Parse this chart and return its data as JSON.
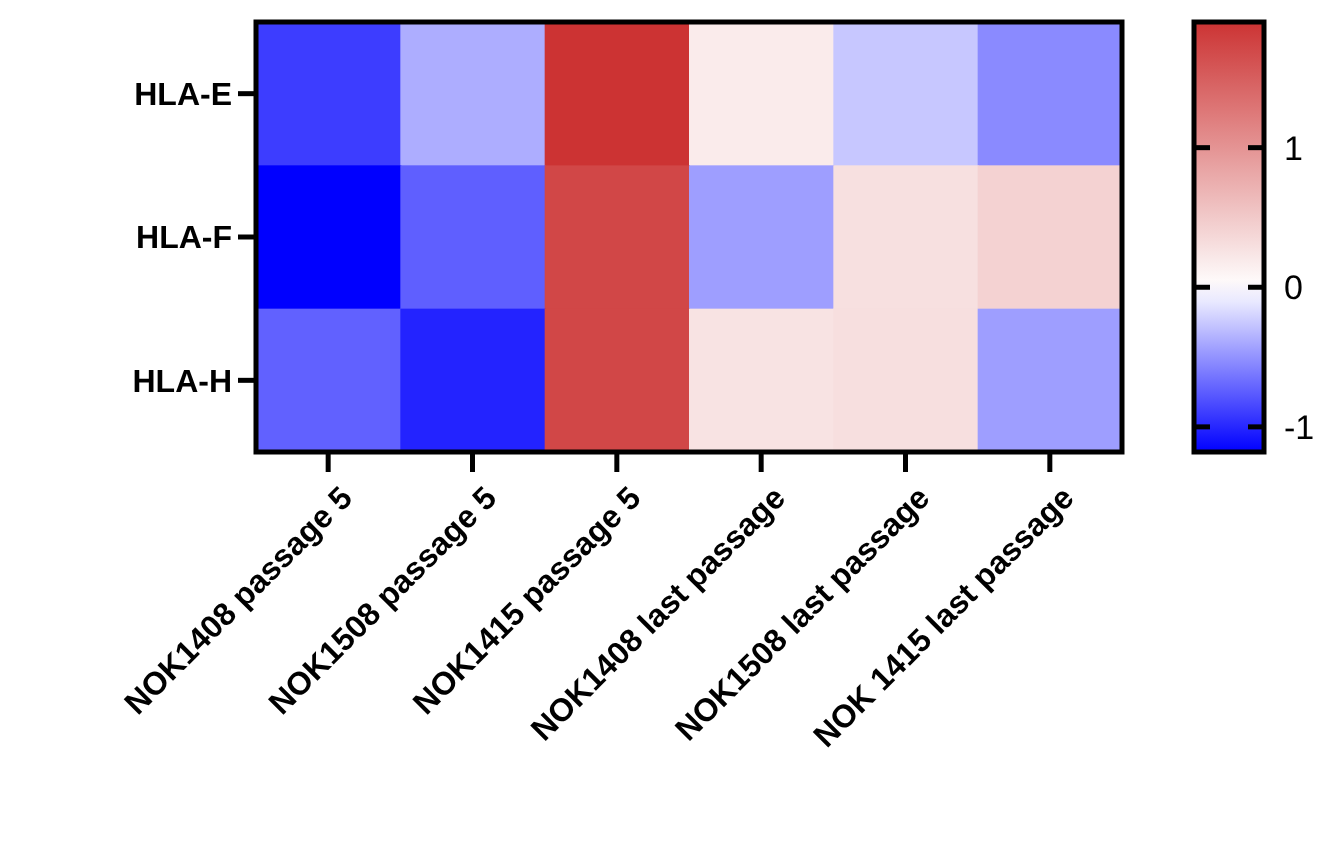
{
  "chart_data": {
    "type": "heatmap",
    "categories": [
      "NOK1408 passage 5",
      "NOK1508 passage 5",
      "NOK1415 passage 5",
      "NOK1408 last passage",
      "NOK1508 last passage",
      "NOK 1415 last passage"
    ],
    "y_categories": [
      "HLA-E",
      "HLA-F",
      "HLA-H"
    ],
    "cells": [
      [
        -0.9,
        -0.38,
        1.9,
        0.19,
        -0.26,
        -0.54
      ],
      [
        -1.18,
        -0.74,
        1.71,
        -0.45,
        0.29,
        0.42
      ],
      [
        -0.73,
        -1.02,
        1.71,
        0.26,
        0.3,
        -0.45
      ]
    ],
    "clim": [
      -1.18,
      1.9
    ],
    "cticks": [
      -1,
      0,
      1
    ]
  }
}
